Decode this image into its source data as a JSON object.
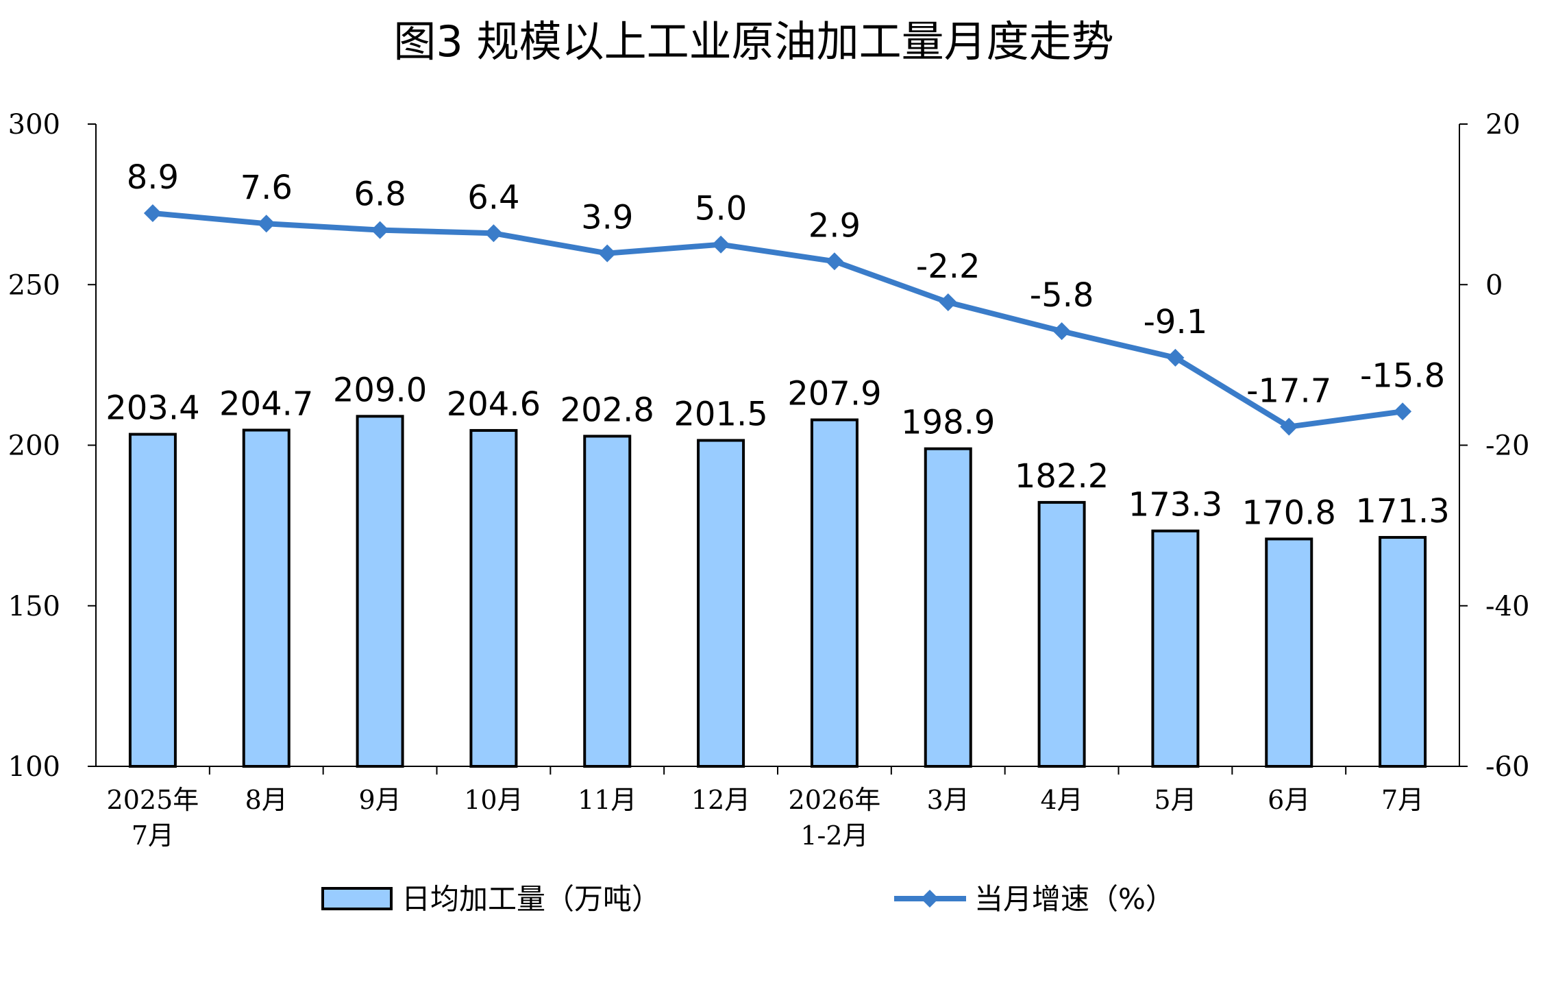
{
  "title": "图3  规模以上工业原油加工量月度走势",
  "chart_data": {
    "type": "bar+line",
    "categories": [
      [
        "2025年",
        "7月"
      ],
      [
        "8月"
      ],
      [
        "9月"
      ],
      [
        "10月"
      ],
      [
        "11月"
      ],
      [
        "12月"
      ],
      [
        "2026年",
        "1-2月"
      ],
      [
        "3月"
      ],
      [
        "4月"
      ],
      [
        "5月"
      ],
      [
        "6月"
      ],
      [
        "7月"
      ]
    ],
    "series": [
      {
        "name": "日均加工量（万吨）",
        "type": "bar",
        "axis": "left",
        "color": "#99CCFF",
        "values": [
          203.4,
          204.7,
          209.0,
          204.6,
          202.8,
          201.5,
          207.9,
          198.9,
          182.2,
          173.3,
          170.8,
          171.3
        ],
        "labels": [
          "203.4",
          "204.7",
          "209.0",
          "204.6",
          "202.8",
          "201.5",
          "207.9",
          "198.9",
          "182.2",
          "173.3",
          "170.8",
          "171.3"
        ]
      },
      {
        "name": "当月增速（%）",
        "type": "line",
        "axis": "right",
        "color": "#3A7CC9",
        "marker": "diamond",
        "values": [
          8.9,
          7.6,
          6.8,
          6.4,
          3.9,
          5.0,
          2.9,
          -2.2,
          -5.8,
          -9.1,
          -17.7,
          -15.8
        ],
        "labels": [
          "8.9",
          "7.6",
          "6.8",
          "6.4",
          "3.9",
          "5.0",
          "2.9",
          "-2.2",
          "-5.8",
          "-9.1",
          "-17.7",
          "-15.8"
        ]
      }
    ],
    "y_left": {
      "lim": [
        100,
        300
      ],
      "ticks": [
        100,
        150,
        200,
        250,
        300
      ],
      "labels": [
        "100",
        "150",
        "200",
        "250",
        "300"
      ]
    },
    "y_right": {
      "lim": [
        -60,
        20
      ],
      "ticks": [
        -60,
        -40,
        -20,
        0,
        20
      ],
      "labels": [
        "-60",
        "-40",
        "-20",
        "0",
        "20"
      ]
    },
    "grid": false,
    "legend_position": "bottom"
  }
}
